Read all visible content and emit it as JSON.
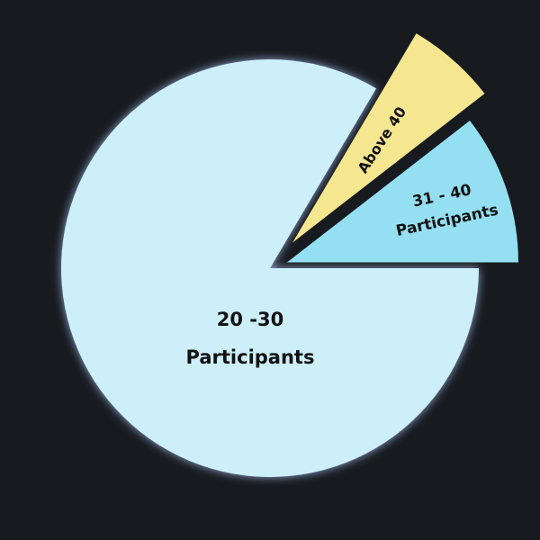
{
  "chart_data": {
    "type": "pie",
    "title": "",
    "slices": [
      {
        "label_lines": [
          "20 -30",
          "Participants"
        ],
        "value": 83.5,
        "color": "#cdeffa",
        "exploded": false
      },
      {
        "label_lines": [
          "31 - 40",
          "Participants"
        ],
        "value": 10.5,
        "color": "#94e0f2",
        "exploded": true
      },
      {
        "label_lines": [
          "Above 40"
        ],
        "value": 6,
        "color": "#f5e690",
        "exploded": true
      }
    ],
    "background": "#171b1f"
  }
}
